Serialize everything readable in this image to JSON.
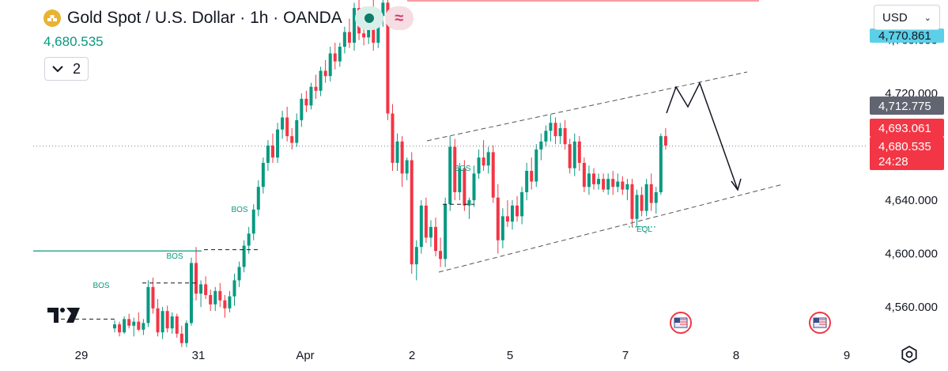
{
  "header": {
    "title": "Gold Spot / U.S. Dollar · 1h · OANDA",
    "last_price": "4,680.535",
    "legend_count": "2",
    "currency": "USD",
    "symbol_icon": "gold-bars-icon"
  },
  "chart_data": {
    "type": "candlestick",
    "yaxis": {
      "ticks": [
        4560,
        4600,
        4640,
        4680,
        4720,
        4760
      ],
      "tick_labels": [
        "4,560.000",
        "4,600.000",
        "4,640.000",
        "4,720.000",
        "4,760.000"
      ],
      "ylim": [
        4534,
        4790
      ]
    },
    "xaxis": {
      "labels": [
        "29",
        "31",
        "Apr",
        "2",
        "5",
        "7",
        "8",
        "9"
      ]
    },
    "price_labels": [
      {
        "text": "4,770.861",
        "price": 4770.861,
        "color": "#5bd0e8",
        "text_color": "#131722"
      },
      {
        "text": "4,712.775",
        "price": 4712.775,
        "color": "#616571",
        "text_color": "#ffffff"
      },
      {
        "text": "4,693.061",
        "price": 4693.061,
        "color": "#f23645",
        "text_color": "#ffffff"
      },
      {
        "text": "4,680.535",
        "price": 4680.535,
        "color": "#f23645",
        "text_color": "#ffffff"
      },
      {
        "text": "24:28",
        "color": "#f23645",
        "text_color": "#ffffff"
      }
    ],
    "current_price": 4680.535,
    "candles": [
      [
        4544,
        4550,
        4541,
        4547
      ],
      [
        4547,
        4549,
        4538,
        4541
      ],
      [
        4541,
        4553,
        4540,
        4551
      ],
      [
        4551,
        4555,
        4544,
        4546
      ],
      [
        4546,
        4552,
        4538,
        4549
      ],
      [
        4549,
        4556,
        4542,
        4543
      ],
      [
        4543,
        4551,
        4539,
        4548
      ],
      [
        4548,
        4580,
        4545,
        4575
      ],
      [
        4575,
        4582,
        4555,
        4559
      ],
      [
        4559,
        4566,
        4538,
        4541
      ],
      [
        4541,
        4560,
        4536,
        4557
      ],
      [
        4557,
        4561,
        4541,
        4544
      ],
      [
        4544,
        4556,
        4540,
        4553
      ],
      [
        4553,
        4555,
        4537,
        4540
      ],
      [
        4540,
        4546,
        4530,
        4533
      ],
      [
        4533,
        4550,
        4530,
        4548
      ],
      [
        4548,
        4597,
        4546,
        4593
      ],
      [
        4593,
        4605,
        4565,
        4570
      ],
      [
        4570,
        4580,
        4560,
        4577
      ],
      [
        4577,
        4583,
        4566,
        4569
      ],
      [
        4569,
        4573,
        4557,
        4562
      ],
      [
        4562,
        4575,
        4557,
        4572
      ],
      [
        4572,
        4578,
        4560,
        4565
      ],
      [
        4565,
        4569,
        4552,
        4559
      ],
      [
        4559,
        4572,
        4556,
        4568
      ],
      [
        4568,
        4585,
        4561,
        4580
      ],
      [
        4580,
        4594,
        4575,
        4590
      ],
      [
        4590,
        4610,
        4586,
        4606
      ],
      [
        4606,
        4620,
        4600,
        4615
      ],
      [
        4615,
        4637,
        4610,
        4633
      ],
      [
        4633,
        4655,
        4628,
        4650
      ],
      [
        4650,
        4672,
        4645,
        4668
      ],
      [
        4668,
        4685,
        4662,
        4681
      ],
      [
        4681,
        4690,
        4668,
        4672
      ],
      [
        4672,
        4698,
        4668,
        4693
      ],
      [
        4693,
        4707,
        4686,
        4702
      ],
      [
        4702,
        4710,
        4684,
        4688
      ],
      [
        4688,
        4694,
        4678,
        4683
      ],
      [
        4683,
        4705,
        4680,
        4700
      ],
      [
        4700,
        4720,
        4695,
        4716
      ],
      [
        4716,
        4722,
        4706,
        4711
      ],
      [
        4711,
        4728,
        4708,
        4725
      ],
      [
        4725,
        4734,
        4716,
        4722
      ],
      [
        4722,
        4740,
        4718,
        4737
      ],
      [
        4737,
        4745,
        4728,
        4733
      ],
      [
        4733,
        4755,
        4729,
        4750
      ],
      [
        4750,
        4758,
        4738,
        4744
      ],
      [
        4744,
        4758,
        4740,
        4755
      ],
      [
        4755,
        4770,
        4750,
        4766
      ],
      [
        4766,
        4776,
        4754,
        4758
      ],
      [
        4758,
        4788,
        4752,
        4784
      ],
      [
        4784,
        4792,
        4760,
        4765
      ],
      [
        4765,
        4778,
        4756,
        4762
      ],
      [
        4762,
        4784,
        4757,
        4780
      ],
      [
        4780,
        4790,
        4752,
        4758
      ],
      [
        4758,
        4782,
        4754,
        4778
      ],
      [
        4778,
        4792,
        4770,
        4788
      ],
      [
        4788,
        4790,
        4700,
        4705
      ],
      [
        4705,
        4712,
        4662,
        4668
      ],
      [
        4668,
        4690,
        4662,
        4684
      ],
      [
        4684,
        4688,
        4650,
        4660
      ],
      [
        4660,
        4672,
        4655,
        4670
      ],
      [
        4670,
        4676,
        4585,
        4592
      ],
      [
        4592,
        4610,
        4580,
        4605
      ],
      [
        4605,
        4640,
        4600,
        4636
      ],
      [
        4636,
        4642,
        4608,
        4612
      ],
      [
        4612,
        4625,
        4605,
        4620
      ],
      [
        4620,
        4627,
        4598,
        4602
      ],
      [
        4602,
        4612,
        4590,
        4596
      ],
      [
        4596,
        4642,
        4590,
        4637
      ],
      [
        4637,
        4688,
        4632,
        4680
      ],
      [
        4680,
        4686,
        4640,
        4646
      ],
      [
        4646,
        4668,
        4640,
        4664
      ],
      [
        4664,
        4670,
        4632,
        4636
      ],
      [
        4636,
        4642,
        4626,
        4640
      ],
      [
        4640,
        4666,
        4635,
        4660
      ],
      [
        4660,
        4678,
        4656,
        4672
      ],
      [
        4672,
        4685,
        4662,
        4666
      ],
      [
        4666,
        4680,
        4660,
        4676
      ],
      [
        4676,
        4681,
        4638,
        4642
      ],
      [
        4642,
        4652,
        4600,
        4610
      ],
      [
        4610,
        4634,
        4604,
        4628
      ],
      [
        4628,
        4640,
        4620,
        4624
      ],
      [
        4624,
        4640,
        4618,
        4636
      ],
      [
        4636,
        4643,
        4624,
        4628
      ],
      [
        4628,
        4650,
        4622,
        4646
      ],
      [
        4646,
        4668,
        4640,
        4662
      ],
      [
        4662,
        4672,
        4648,
        4654
      ],
      [
        4654,
        4682,
        4650,
        4678
      ],
      [
        4678,
        4690,
        4670,
        4684
      ],
      [
        4684,
        4696,
        4680,
        4692
      ],
      [
        4692,
        4704,
        4684,
        4698
      ],
      [
        4698,
        4702,
        4682,
        4688
      ],
      [
        4688,
        4698,
        4682,
        4694
      ],
      [
        4694,
        4700,
        4678,
        4682
      ],
      [
        4682,
        4686,
        4660,
        4664
      ],
      [
        4664,
        4690,
        4658,
        4684
      ],
      [
        4684,
        4688,
        4662,
        4668
      ],
      [
        4668,
        4672,
        4646,
        4650
      ],
      [
        4650,
        4666,
        4644,
        4660
      ],
      [
        4660,
        4664,
        4648,
        4652
      ],
      [
        4652,
        4660,
        4648,
        4656
      ],
      [
        4656,
        4660,
        4646,
        4648
      ],
      [
        4648,
        4660,
        4644,
        4656
      ],
      [
        4656,
        4662,
        4644,
        4650
      ],
      [
        4650,
        4660,
        4646,
        4654
      ],
      [
        4654,
        4658,
        4644,
        4648
      ],
      [
        4648,
        4656,
        4640,
        4652
      ],
      [
        4652,
        4656,
        4620,
        4626
      ],
      [
        4626,
        4648,
        4620,
        4644
      ],
      [
        4644,
        4650,
        4628,
        4632
      ],
      [
        4632,
        4656,
        4628,
        4652
      ],
      [
        4652,
        4660,
        4632,
        4638
      ],
      [
        4638,
        4650,
        4630,
        4646
      ],
      [
        4646,
        4690,
        4644,
        4688
      ],
      [
        4688,
        4694,
        4678,
        4681
      ]
    ],
    "annotations": [
      {
        "type": "text",
        "text": "BOS"
      },
      {
        "type": "text",
        "text": "BOS"
      },
      {
        "type": "text",
        "text": "BOS"
      },
      {
        "type": "text",
        "text": "BOS"
      },
      {
        "type": "text",
        "text": "EQL"
      }
    ],
    "grid": false,
    "candle_up_color": "#089981",
    "candle_down_color": "#f23645",
    "event_icons": [
      "us-flag-icon",
      "us-flag-icon"
    ]
  }
}
